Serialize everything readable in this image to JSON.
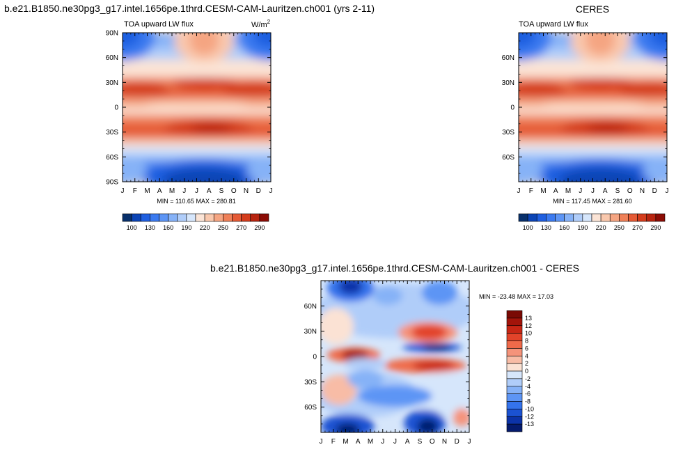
{
  "chart_data": [
    {
      "type": "contour",
      "title": "b.e21.B1850.ne30pg3_g17.intel.1656pe.1thrd.CESM-CAM-Lauritzen.ch001 (yrs 2-11)",
      "subtitle_left": "TOA upward LW flux",
      "units_base": "W/m",
      "units_sup": "2",
      "x_ticks": [
        "J",
        "F",
        "M",
        "A",
        "M",
        "J",
        "J",
        "A",
        "S",
        "O",
        "N",
        "D",
        "J"
      ],
      "y_ticks": [
        "90N",
        "60N",
        "30N",
        "0",
        "30S",
        "60S",
        "90S"
      ],
      "stats": "MIN = 110.65 MAX = 280.81",
      "min": 110.65,
      "max": 280.81,
      "colorbar_labels": [
        "100",
        "130",
        "160",
        "190",
        "220",
        "250",
        "270",
        "290"
      ]
    },
    {
      "type": "contour",
      "title": "CERES",
      "subtitle_left": "TOA upward LW flux",
      "x_ticks": [
        "J",
        "F",
        "M",
        "A",
        "M",
        "J",
        "J",
        "A",
        "S",
        "O",
        "N",
        "D",
        "J"
      ],
      "y_ticks": [
        "60N",
        "30N",
        "0",
        "30S",
        "60S"
      ],
      "stats": "MIN = 117.45 MAX = 281.60",
      "min": 117.45,
      "max": 281.6,
      "colorbar_labels": [
        "100",
        "130",
        "160",
        "190",
        "220",
        "250",
        "270",
        "290"
      ]
    },
    {
      "type": "contour",
      "title": "b.e21.B1850.ne30pg3_g17.intel.1656pe.1thrd.CESM-CAM-Lauritzen.ch001 - CERES",
      "x_ticks": [
        "J",
        "F",
        "M",
        "A",
        "M",
        "J",
        "J",
        "A",
        "S",
        "O",
        "N",
        "D",
        "J"
      ],
      "y_ticks": [
        "60N",
        "30N",
        "0",
        "30S",
        "60S"
      ],
      "stats": "MIN = -23.48 MAX =  17.03",
      "min": -23.48,
      "max": 17.03,
      "colorbar_labels": [
        "13",
        "12",
        "10",
        "8",
        "6",
        "4",
        "2",
        "0",
        "-2",
        "-4",
        "-6",
        "-8",
        "-10",
        "-12",
        "-13"
      ]
    }
  ],
  "palettes": {
    "absolute": [
      "#08306b",
      "#0b44b5",
      "#1f5fe0",
      "#3b7af0",
      "#5d95f5",
      "#86b2f7",
      "#b0cdf9",
      "#d6e6fb",
      "#fbe4d6",
      "#f9c8ad",
      "#f5a582",
      "#ef8058",
      "#e55a35",
      "#d43c1c",
      "#b8240f",
      "#8c0c05"
    ],
    "difference": [
      "#7a0a04",
      "#a3140a",
      "#c82615",
      "#e2432a",
      "#ef6a4a",
      "#f5937a",
      "#f8bca6",
      "#fbe2d4",
      "#d6e6fb",
      "#b0cdf9",
      "#86b2f7",
      "#5d95f5",
      "#3473ec",
      "#1b52d2",
      "#0c33a8",
      "#051b6e"
    ]
  }
}
